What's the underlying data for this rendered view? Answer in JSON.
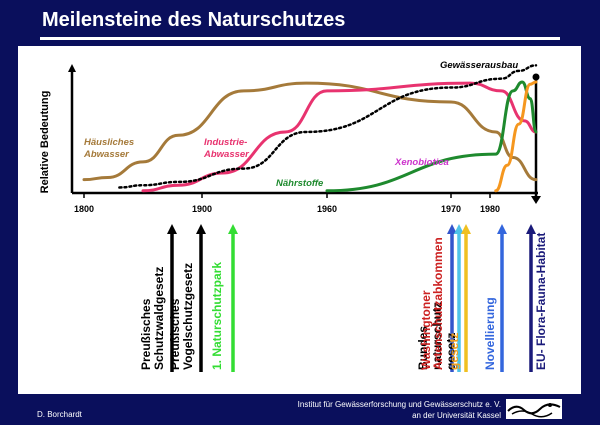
{
  "title": "Meilensteine des Naturschutzes",
  "footer": {
    "author": "D. Borchardt",
    "institute_line1": "Institut für Gewässerforschung  und Gewässerschutz e. V.",
    "institute_line2": "an der Universität Kassel"
  },
  "colors": {
    "background": "#0a0f5c",
    "haeusliches_abwasser": "#a57a3a",
    "industrie_abwasser": "#e8336f",
    "naehrstoffe": "#1e8a2e",
    "xenobiotica": "#f5971f",
    "gewaesserausbau": "#000000"
  },
  "chart_data": {
    "type": "line",
    "ylabel": "Relative  Bedeutung",
    "xlabel": "",
    "x_ticks": [
      "1800",
      "1900",
      "1960",
      "1970",
      "1980"
    ],
    "series": [
      {
        "name": "Häusliches Abwasser",
        "color": "#a57a3a",
        "x": [
          1800,
          1820,
          1850,
          1880,
          1920,
          1950,
          1970,
          1985,
          2000,
          2020
        ],
        "y": [
          0.12,
          0.14,
          0.28,
          0.52,
          0.92,
          0.99,
          0.82,
          0.55,
          0.32,
          0.12
        ]
      },
      {
        "name": "Industrie-Abwasser",
        "color": "#e8336f",
        "x": [
          1850,
          1880,
          1910,
          1940,
          1960,
          1975,
          1990,
          2010,
          2020
        ],
        "y": [
          0.02,
          0.07,
          0.18,
          0.55,
          0.92,
          0.99,
          0.92,
          0.65,
          0.55
        ]
      },
      {
        "name": "Nährstoffe",
        "color": "#1e8a2e",
        "x": [
          1960,
          1985,
          2000,
          2008,
          2015,
          2020
        ],
        "y": [
          0.02,
          0.35,
          0.92,
          1.0,
          0.85,
          0.55
        ]
      },
      {
        "name": "Xenobiotica",
        "color": "#f5971f",
        "x": [
          1985,
          1995,
          2005,
          2015,
          2020
        ],
        "y": [
          0.02,
          0.25,
          0.62,
          0.98,
          1.0
        ]
      },
      {
        "name": "Gewässerausbau",
        "color": "#000000",
        "dashed": true,
        "x": [
          1830,
          1850,
          1880,
          1920,
          1950,
          1970,
          1990,
          2005,
          2020
        ],
        "y": [
          0.05,
          0.07,
          0.1,
          0.22,
          0.55,
          0.95,
          1.03,
          1.1,
          1.15
        ]
      }
    ],
    "series_labels": [
      {
        "text": "Häusliches",
        "text2": "Abwasser",
        "color": "#a57a3a"
      },
      {
        "text": "Industrie-",
        "text2": "Abwasser",
        "color": "#e8336f"
      },
      {
        "text": "Nährstoffe",
        "text2": "",
        "color": "#1e8a2e"
      },
      {
        "text": "Xenobiotica",
        "text2": "",
        "color": "#cc33cc"
      },
      {
        "text": "Gewässerausbau",
        "text2": "",
        "color": "#000000"
      }
    ],
    "milestones": [
      {
        "label1": "Preußisches",
        "label2": "Schutzwaldgesetz",
        "color": "#000000",
        "x": 1905,
        "text_color": "#000000"
      },
      {
        "label1": "Preußisches",
        "label2": "Vogelschutzgesetz",
        "color": "#000000",
        "x": 1913,
        "text_color": "#000000"
      },
      {
        "label1": "1. Naturschutzpark",
        "label2": "",
        "color": "#33dd33",
        "x": 1920,
        "text_color": "#33dd33"
      },
      {
        "label1": "Bundes",
        "label2": "naturschutz",
        "label3": "gesetz",
        "color": "#3355cc",
        "x": 1976,
        "text_color": "#000000"
      },
      {
        "label1": "Washingtoner",
        "label2": "Artenschutzabkommen",
        "color": "#4fc3e8",
        "x": 1978,
        "text_color": "#cc2222"
      },
      {
        "label1": "gesetz",
        "label2": "",
        "color": "#f0c020",
        "x": 1980,
        "text_color": "#f0a020"
      },
      {
        "label1": "Novellierung",
        "label2": "",
        "color": "#3366dd",
        "x": 1997,
        "text_color": "#3366dd"
      },
      {
        "label1": "EU- Flora-Fauna-Habitat",
        "label2": "",
        "color": "#1a1a7a",
        "x": 2009,
        "text_color": "#1a1a7a"
      }
    ]
  }
}
